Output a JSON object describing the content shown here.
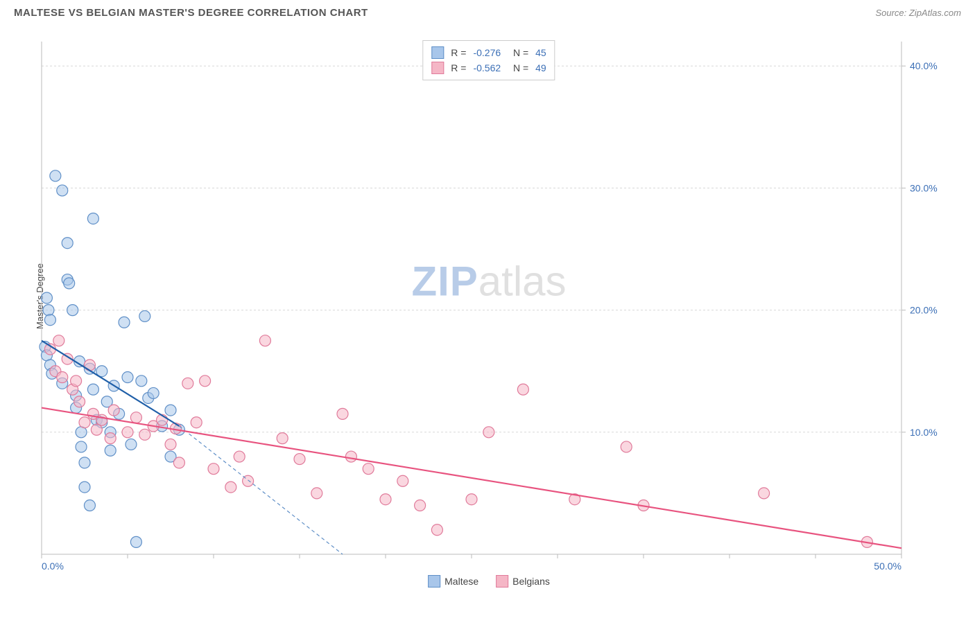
{
  "header": {
    "title": "MALTESE VS BELGIAN MASTER'S DEGREE CORRELATION CHART",
    "source_prefix": "Source: ",
    "source_name": "ZipAtlas.com"
  },
  "chart": {
    "type": "scatter",
    "y_axis_label": "Master's Degree",
    "xlim": [
      0,
      50
    ],
    "ylim": [
      0,
      42
    ],
    "x_ticks": [
      0,
      5,
      10,
      15,
      20,
      25,
      30,
      35,
      40,
      45,
      50
    ],
    "x_tick_labels": {
      "0": "0.0%",
      "50": "50.0%"
    },
    "y_ticks": [
      10,
      20,
      30,
      40
    ],
    "y_tick_labels": {
      "10": "10.0%",
      "20": "20.0%",
      "30": "30.0%",
      "40": "40.0%"
    },
    "background_color": "#ffffff",
    "grid_color": "#d8d8d8",
    "axis_color": "#bbbbbb",
    "tick_label_color": "#3b6fb6",
    "marker_radius": 8,
    "marker_stroke_width": 1.2,
    "trend_line_width": 2.2,
    "watermark": {
      "part1": "ZIP",
      "part2": "atlas"
    },
    "series": [
      {
        "name": "Maltese",
        "fill": "#a8c6ea",
        "stroke": "#5f8fc7",
        "fill_opacity": 0.55,
        "R": "-0.276",
        "N": "45",
        "trend": {
          "x1": 0,
          "y1": 17.5,
          "x2": 8,
          "y2": 10.5,
          "color": "#1f5fa8"
        },
        "trend_ext": {
          "x1": 8,
          "y1": 10.5,
          "x2": 17.5,
          "y2": 0,
          "color": "#5f8fc7",
          "dash": "5,4"
        },
        "points": [
          [
            0.2,
            17.0
          ],
          [
            0.3,
            16.3
          ],
          [
            0.3,
            21.0
          ],
          [
            0.4,
            20.0
          ],
          [
            0.5,
            19.2
          ],
          [
            0.5,
            15.5
          ],
          [
            0.6,
            14.8
          ],
          [
            0.8,
            31.0
          ],
          [
            1.2,
            29.8
          ],
          [
            1.2,
            14.0
          ],
          [
            1.5,
            25.5
          ],
          [
            1.5,
            22.5
          ],
          [
            1.6,
            22.2
          ],
          [
            1.8,
            20.0
          ],
          [
            2.0,
            13.0
          ],
          [
            2.0,
            12.0
          ],
          [
            2.2,
            15.8
          ],
          [
            2.3,
            10.0
          ],
          [
            2.3,
            8.8
          ],
          [
            2.5,
            5.5
          ],
          [
            2.5,
            7.5
          ],
          [
            2.8,
            15.2
          ],
          [
            2.8,
            4.0
          ],
          [
            3.0,
            27.5
          ],
          [
            3.0,
            13.5
          ],
          [
            3.2,
            11.0
          ],
          [
            3.5,
            10.8
          ],
          [
            3.5,
            15.0
          ],
          [
            3.8,
            12.5
          ],
          [
            4.0,
            8.5
          ],
          [
            4.0,
            10.0
          ],
          [
            4.2,
            13.8
          ],
          [
            4.5,
            11.5
          ],
          [
            4.8,
            19.0
          ],
          [
            5.0,
            14.5
          ],
          [
            5.2,
            9.0
          ],
          [
            5.5,
            1.0
          ],
          [
            5.8,
            14.2
          ],
          [
            6.0,
            19.5
          ],
          [
            6.2,
            12.8
          ],
          [
            6.5,
            13.2
          ],
          [
            7.0,
            10.5
          ],
          [
            7.5,
            8.0
          ],
          [
            7.5,
            11.8
          ],
          [
            8.0,
            10.2
          ]
        ]
      },
      {
        "name": "Belgians",
        "fill": "#f5b6c6",
        "stroke": "#e07a9a",
        "fill_opacity": 0.55,
        "R": "-0.562",
        "N": "49",
        "trend": {
          "x1": 0,
          "y1": 12.0,
          "x2": 50,
          "y2": 0.5,
          "color": "#e8537f"
        },
        "points": [
          [
            0.5,
            16.8
          ],
          [
            0.8,
            15.0
          ],
          [
            1.0,
            17.5
          ],
          [
            1.2,
            14.5
          ],
          [
            1.5,
            16.0
          ],
          [
            1.8,
            13.5
          ],
          [
            2.0,
            14.2
          ],
          [
            2.2,
            12.5
          ],
          [
            2.5,
            10.8
          ],
          [
            2.8,
            15.5
          ],
          [
            3.0,
            11.5
          ],
          [
            3.2,
            10.2
          ],
          [
            3.5,
            11.0
          ],
          [
            4.0,
            9.5
          ],
          [
            4.2,
            11.8
          ],
          [
            5.0,
            10.0
          ],
          [
            5.5,
            11.2
          ],
          [
            6.0,
            9.8
          ],
          [
            6.5,
            10.5
          ],
          [
            7.0,
            11.0
          ],
          [
            7.5,
            9.0
          ],
          [
            7.8,
            10.3
          ],
          [
            8.0,
            7.5
          ],
          [
            8.5,
            14.0
          ],
          [
            9.0,
            10.8
          ],
          [
            9.5,
            14.2
          ],
          [
            10.0,
            7.0
          ],
          [
            11.0,
            5.5
          ],
          [
            11.5,
            8.0
          ],
          [
            12.0,
            6.0
          ],
          [
            13.0,
            17.5
          ],
          [
            14.0,
            9.5
          ],
          [
            15.0,
            7.8
          ],
          [
            16.0,
            5.0
          ],
          [
            17.5,
            11.5
          ],
          [
            18.0,
            8.0
          ],
          [
            19.0,
            7.0
          ],
          [
            20.0,
            4.5
          ],
          [
            21.0,
            6.0
          ],
          [
            22.0,
            4.0
          ],
          [
            23.0,
            2.0
          ],
          [
            25.0,
            4.5
          ],
          [
            26.0,
            10.0
          ],
          [
            28.0,
            13.5
          ],
          [
            31.0,
            4.5
          ],
          [
            34.0,
            8.8
          ],
          [
            35.0,
            4.0
          ],
          [
            42.0,
            5.0
          ],
          [
            48.0,
            1.0
          ]
        ]
      }
    ],
    "legend_bottom": [
      {
        "label": "Maltese",
        "fill": "#a8c6ea",
        "stroke": "#5f8fc7"
      },
      {
        "label": "Belgians",
        "fill": "#f5b6c6",
        "stroke": "#e07a9a"
      }
    ]
  }
}
